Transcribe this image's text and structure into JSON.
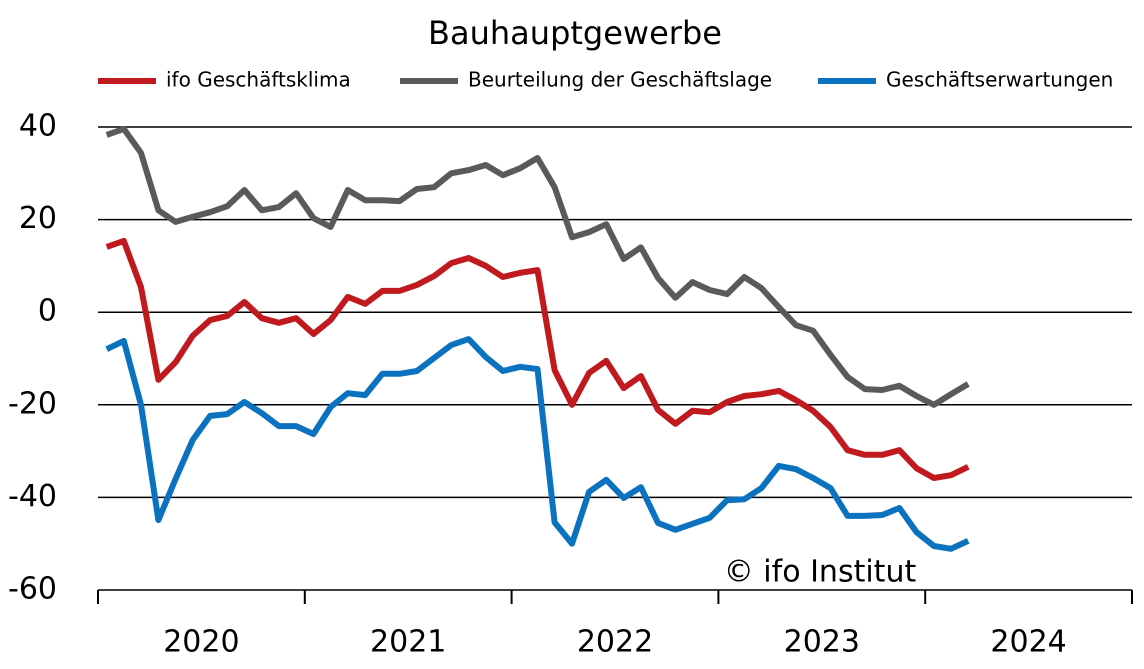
{
  "chart_data": {
    "type": "line",
    "title": "Bauhauptgewerbe",
    "annotation": "© ifo Institut",
    "x": [
      2020.042,
      2020.125,
      2020.208,
      2020.292,
      2020.375,
      2020.458,
      2020.542,
      2020.625,
      2020.708,
      2020.792,
      2020.875,
      2020.958,
      2021.042,
      2021.125,
      2021.208,
      2021.292,
      2021.375,
      2021.458,
      2021.542,
      2021.625,
      2021.708,
      2021.792,
      2021.875,
      2021.958,
      2022.042,
      2022.125,
      2022.208,
      2022.292,
      2022.375,
      2022.458,
      2022.542,
      2022.625,
      2022.708,
      2022.792,
      2022.875,
      2022.958,
      2023.042,
      2023.125,
      2023.208,
      2023.292,
      2023.375,
      2023.458,
      2023.542,
      2023.625,
      2023.708,
      2023.792,
      2023.875,
      2023.958,
      2024.042,
      2024.125,
      2024.208
    ],
    "series": [
      {
        "name": "ifo Geschäftsklima",
        "color": "#c0191e",
        "values": [
          14.1,
          15.4,
          5.4,
          -14.6,
          -10.8,
          -5.1,
          -1.7,
          -0.8,
          2.2,
          -1.3,
          -2.3,
          -1.3,
          -4.7,
          -1.7,
          3.3,
          1.8,
          4.6,
          4.6,
          5.9,
          7.8,
          10.6,
          11.7,
          10,
          7.6,
          8.5,
          9.1,
          -12.5,
          -20,
          -13.1,
          -10.5,
          -16.4,
          -13.8,
          -21.1,
          -24.1,
          -21.3,
          -21.6,
          -19.4,
          -18.1,
          -17.7,
          -17,
          -19,
          -21.3,
          -24.8,
          -29.8,
          -30.8,
          -30.8,
          -29.8,
          -33.7,
          -35.8,
          -35.2,
          -33.4
        ]
      },
      {
        "name": "Beurteilung der Geschäftslage",
        "color": "#5a5a5a",
        "values": [
          38.3,
          39.6,
          34.4,
          22,
          19.5,
          20.6,
          21.6,
          22.9,
          26.4,
          22,
          22.7,
          25.7,
          20.3,
          18.4,
          26.4,
          24.2,
          24.2,
          24,
          26.6,
          27,
          30,
          30.7,
          31.8,
          29.6,
          31.1,
          33.3,
          27,
          16.2,
          17.3,
          19,
          11.5,
          14,
          7.4,
          3.1,
          6.5,
          4.8,
          3.9,
          7.6,
          5.2,
          1.1,
          -2.8,
          -4,
          -9.2,
          -14,
          -16.6,
          -16.8,
          -15.9,
          -18.1,
          -20,
          -17.7,
          -15.5
        ]
      },
      {
        "name": "Geschäftserwartungen",
        "color": "#0a72bf",
        "values": [
          -8,
          -6.2,
          -20,
          -44.9,
          -36,
          -27.6,
          -22.4,
          -22,
          -19.4,
          -21.8,
          -24.6,
          -24.6,
          -26.3,
          -20.5,
          -17.5,
          -17.9,
          -13.3,
          -13.3,
          -12.7,
          -9.9,
          -7.1,
          -5.8,
          -9.7,
          -12.7,
          -11.8,
          -12.3,
          -45.4,
          -50,
          -38.8,
          -36.2,
          -40.1,
          -37.8,
          -45.5,
          -47,
          -45.7,
          -44.4,
          -40.6,
          -40.4,
          -38,
          -33.2,
          -33.9,
          -35.8,
          -38,
          -44,
          -44,
          -43.8,
          -42.3,
          -47.5,
          -50.5,
          -51.1,
          -49.4
        ]
      }
    ],
    "xlim": [
      2020,
      2025
    ],
    "xticks": [
      2020,
      2021,
      2022,
      2023,
      2024,
      2025
    ],
    "xlabels": [
      {
        "value": 2020.5,
        "label": "2020"
      },
      {
        "value": 2021.5,
        "label": "2021"
      },
      {
        "value": 2022.5,
        "label": "2022"
      },
      {
        "value": 2023.5,
        "label": "2023"
      },
      {
        "value": 2024.5,
        "label": "2024"
      }
    ],
    "ylim": [
      -60,
      40
    ],
    "yticks": [
      -60,
      -40,
      -20,
      0,
      20,
      40
    ],
    "grid": true,
    "legend": "top"
  }
}
